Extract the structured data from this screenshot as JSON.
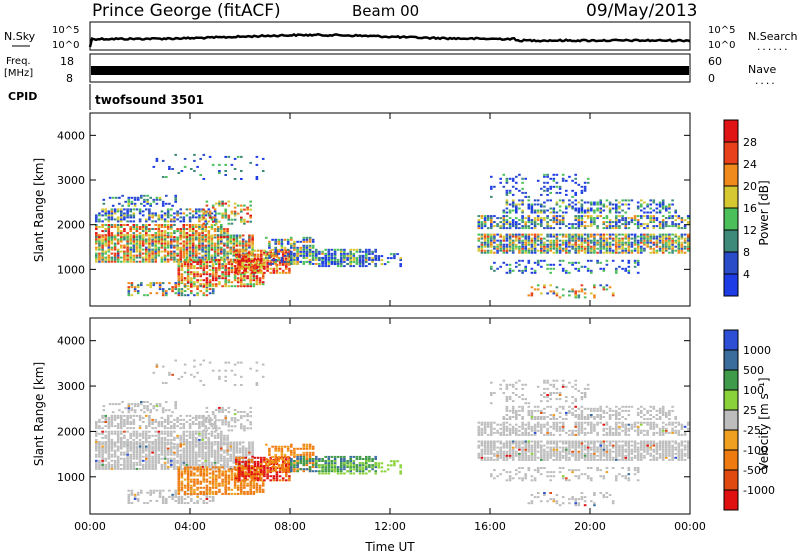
{
  "header": {
    "station": "Prince George (fitACF)",
    "beam": "Beam 00",
    "date": "09/May/2013"
  },
  "noise_panel": {
    "left_label": "N.Sky",
    "right_label": "N.Search",
    "tick_top": "10^5",
    "tick_bottom": "10^0"
  },
  "freq_panel": {
    "left_label_1": "Freq.",
    "left_label_2": "[MHz]",
    "left_tick_top": "18",
    "left_tick_bottom": "8",
    "right_label": "Nave",
    "right_tick_top": "60",
    "right_tick_bottom": "0",
    "cpid_label": "CPID"
  },
  "cpid_text": "twofsound 3501",
  "chart_data": [
    {
      "type": "heatmap",
      "panel": "power",
      "ylabel": "Slant Range [km]",
      "xlabel": "",
      "xlim_hours": [
        0,
        24
      ],
      "ylim_km": [
        180,
        4500
      ],
      "y_ticks": [
        "1000",
        "2000",
        "3000",
        "4000"
      ],
      "colorbar_label": "Power [dB]",
      "colorbar_ticks": [
        "4",
        "8",
        "12",
        "16",
        "20",
        "24",
        "28"
      ],
      "colorbar_colors": [
        "#1e3ce6",
        "#2a4cc8",
        "#3d8a7a",
        "#4bbf5a",
        "#d6c832",
        "#f08a1c",
        "#e8401a",
        "#e01414"
      ],
      "gaps": "no echoes approx 12:30-15:30 UT"
    },
    {
      "type": "heatmap",
      "panel": "velocity",
      "ylabel": "Slant Range [km]",
      "xlabel": "Time UT",
      "xlim_hours": [
        0,
        24
      ],
      "ylim_km": [
        180,
        4500
      ],
      "y_ticks": [
        "1000",
        "2000",
        "3000",
        "4000"
      ],
      "x_ticks": [
        "00:00",
        "04:00",
        "08:00",
        "12:00",
        "16:00",
        "20:00",
        "00:00"
      ],
      "colorbar_label": "Velocity [m s⁻¹]",
      "colorbar_ticks": [
        "1000",
        "500",
        "100",
        "25",
        "-25",
        "-100",
        "-500",
        "-1000"
      ],
      "colorbar_colors": [
        "#2c4fd6",
        "#3a6c9c",
        "#3f9a4a",
        "#8ad23a",
        "#bdbdbd",
        "#f0a020",
        "#ee7a10",
        "#e04a10",
        "#e01010"
      ],
      "ground_scatter_color": "#bdbdbd"
    }
  ]
}
